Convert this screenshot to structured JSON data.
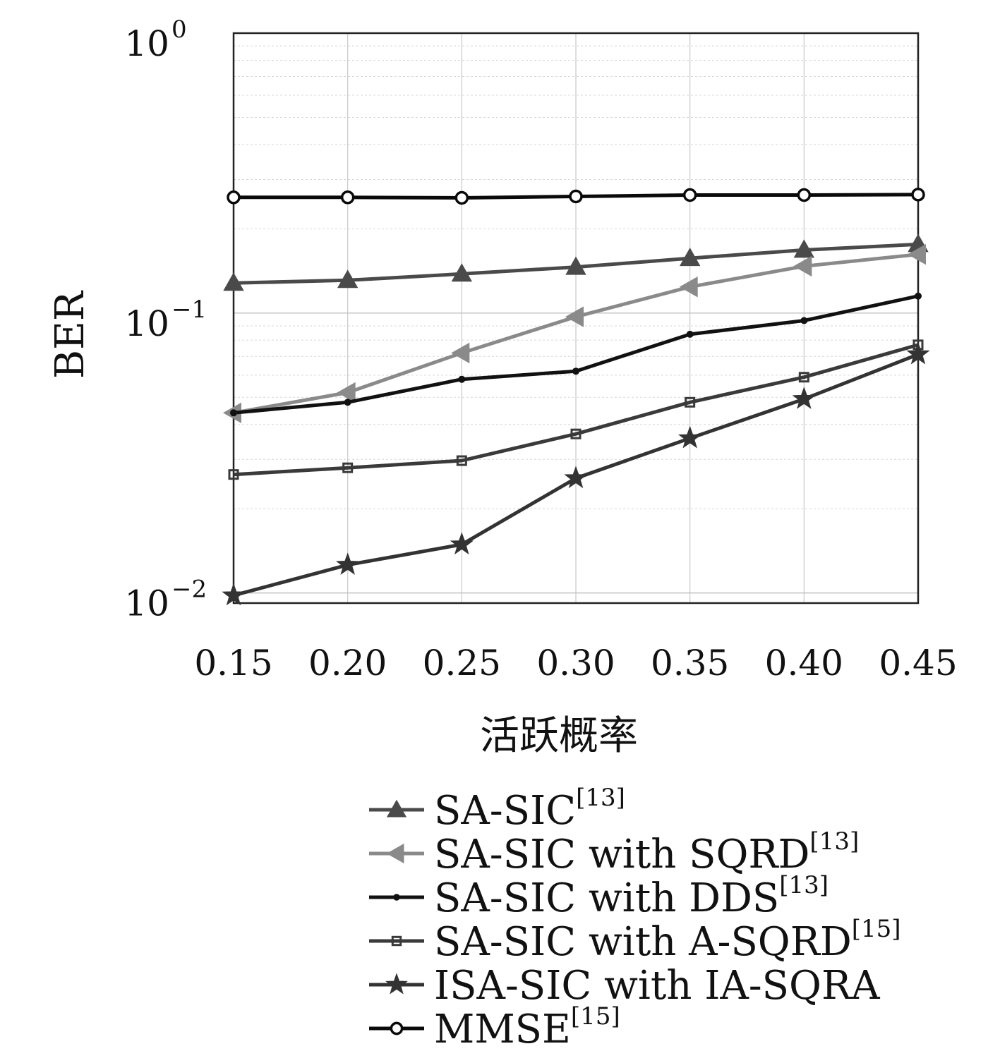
{
  "chart_data": {
    "type": "line",
    "title": "",
    "xlabel": "活跃概率",
    "ylabel": "BER",
    "yscale": "log",
    "x": [
      0.15,
      0.2,
      0.25,
      0.3,
      0.35,
      0.4,
      0.45
    ],
    "xticks": [
      "0.15",
      "0.20",
      "0.25",
      "0.30",
      "0.35",
      "0.40",
      "0.45"
    ],
    "yticks": [
      {
        "base": "10",
        "exp": "0"
      },
      {
        "base": "10",
        "exp": "−1"
      },
      {
        "base": "10",
        "exp": "−2"
      }
    ],
    "xlim": [
      0.15,
      0.45
    ],
    "ylim": [
      0.0092,
      1
    ],
    "grid": true,
    "legend_position": "below",
    "series": [
      {
        "name": "SA-SIC",
        "ref": "[13]",
        "marker": "triangle-up",
        "color": "#4a4a4a",
        "values": [
          0.128,
          0.131,
          0.138,
          0.146,
          0.157,
          0.168,
          0.176
        ]
      },
      {
        "name": "SA-SIC with SQRD",
        "ref": "[13]",
        "marker": "triangle-left",
        "color": "#8a8a8a",
        "values": [
          0.044,
          0.052,
          0.072,
          0.097,
          0.124,
          0.147,
          0.162
        ]
      },
      {
        "name": "SA-SIC with DDS",
        "ref": "[13]",
        "marker": "dot",
        "color": "#111111",
        "values": [
          0.044,
          0.048,
          0.058,
          0.062,
          0.084,
          0.094,
          0.115
        ]
      },
      {
        "name": "SA-SIC with A-SQRD",
        "ref": "[15]",
        "marker": "square",
        "color": "#3a3a3a",
        "values": [
          0.0265,
          0.028,
          0.0297,
          0.037,
          0.048,
          0.059,
          0.077
        ]
      },
      {
        "name": "ISA-SIC with IA-SQRA",
        "ref": "",
        "marker": "star",
        "color": "#333333",
        "values": [
          0.0098,
          0.0126,
          0.0149,
          0.0257,
          0.0357,
          0.0493,
          0.0712
        ]
      },
      {
        "name": "MMSE",
        "ref": "[15]",
        "marker": "circle",
        "color": "#0a0a0a",
        "values": [
          0.259,
          0.259,
          0.258,
          0.261,
          0.264,
          0.264,
          0.265
        ]
      }
    ]
  }
}
